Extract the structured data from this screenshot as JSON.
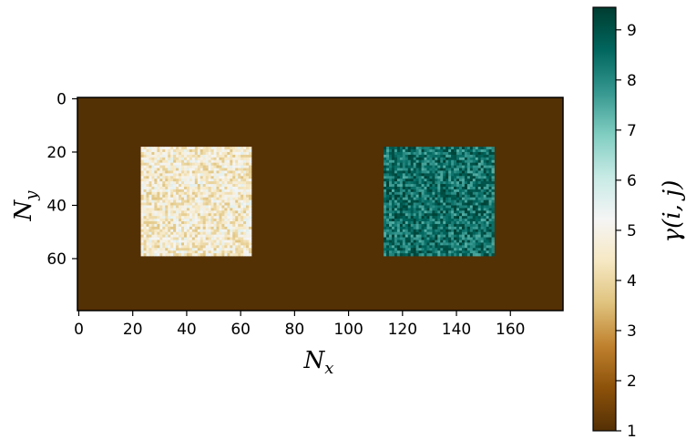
{
  "chart_data": {
    "type": "heatmap",
    "title": "",
    "xlabel": "N",
    "xlabel_sub": "x",
    "ylabel": "N",
    "ylabel_sub": "y",
    "grid_shape": {
      "rows": 80,
      "cols": 180
    },
    "xlim": [
      0,
      180
    ],
    "ylim": [
      80,
      0
    ],
    "xticks": [
      0,
      20,
      40,
      60,
      80,
      100,
      120,
      140,
      160
    ],
    "yticks": [
      0,
      20,
      40,
      60
    ],
    "background_value": 1,
    "regions": [
      {
        "x_range": [
          24,
          64
        ],
        "y_range": [
          19,
          59
        ],
        "value_range": [
          3.6,
          5.6
        ],
        "pattern": "random noise"
      },
      {
        "x_range": [
          114,
          154
        ],
        "y_range": [
          19,
          59
        ],
        "value_range": [
          7.4,
          9.4
        ],
        "pattern": "random noise"
      }
    ],
    "colorbar": {
      "label": "γ(i, j)",
      "colormap": "BrBG",
      "range": [
        1,
        9.45
      ],
      "ticks": [
        1,
        2,
        3,
        4,
        5,
        6,
        7,
        8,
        9
      ]
    }
  },
  "colors": {
    "colormap_stops": [
      "#543005",
      "#8c510a",
      "#bf812d",
      "#dfc27d",
      "#f6e8c3",
      "#f5f5f5",
      "#c7eae5",
      "#80cdc1",
      "#35978f",
      "#01665e",
      "#003c30"
    ]
  }
}
